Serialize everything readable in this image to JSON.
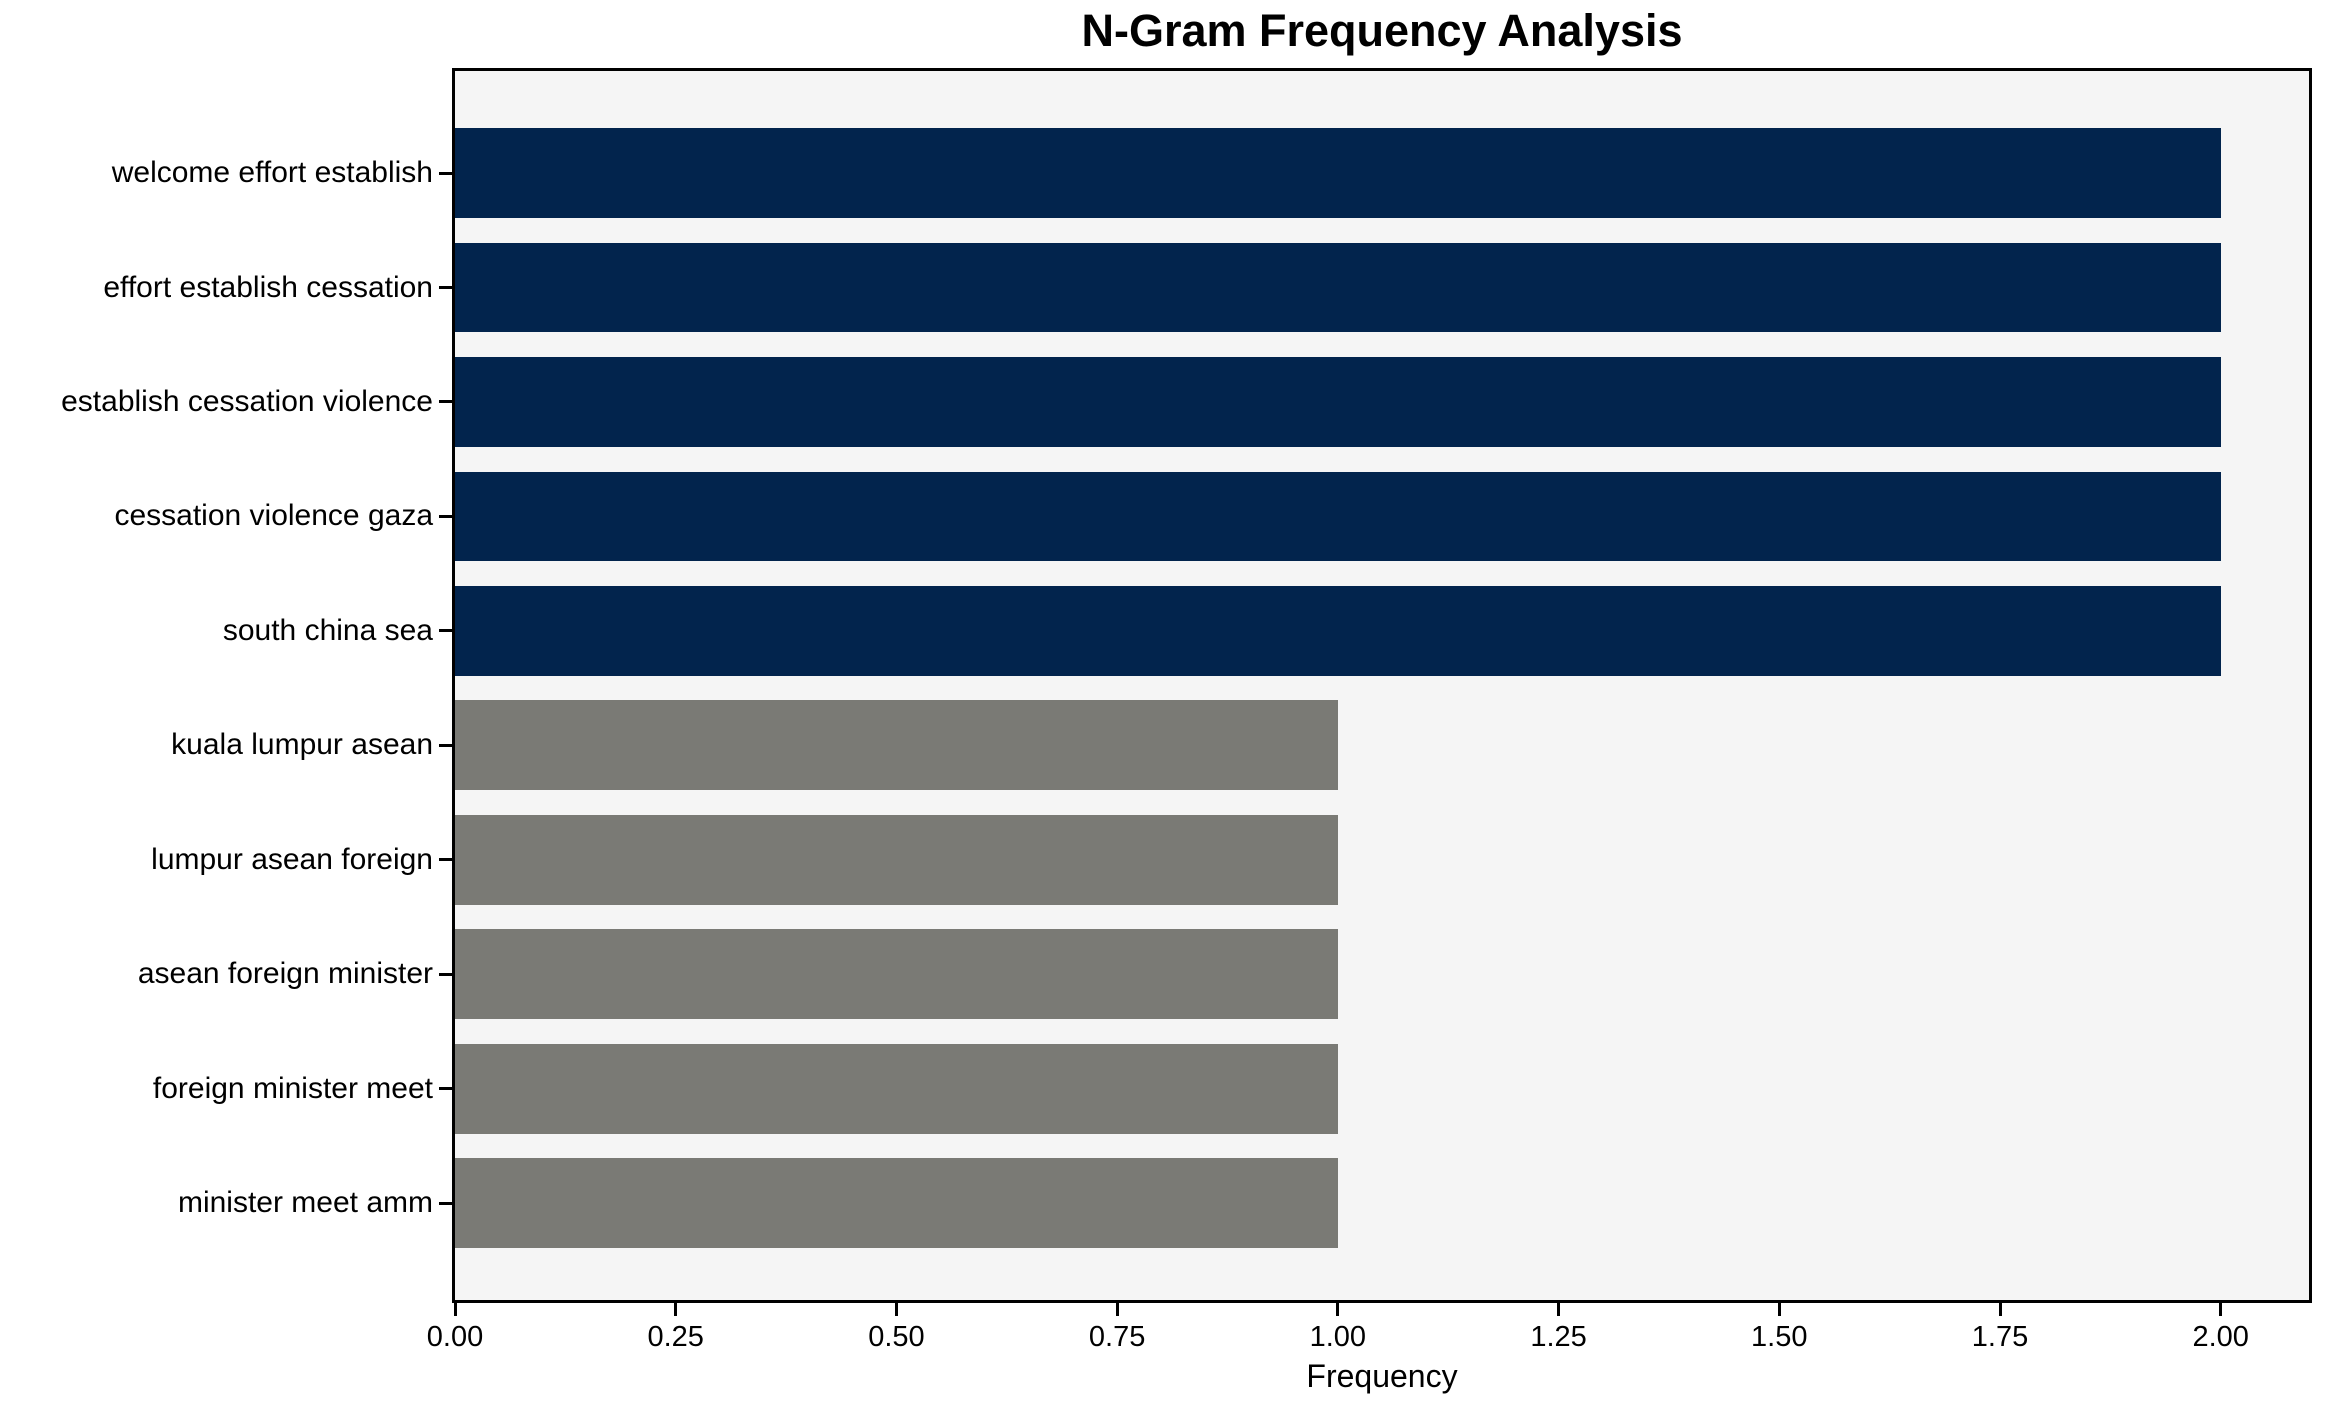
{
  "chart_data": {
    "type": "bar",
    "orientation": "horizontal",
    "title": "N-Gram Frequency Analysis",
    "xlabel": "Frequency",
    "ylabel": "",
    "categories": [
      "welcome effort establish",
      "effort establish cessation",
      "establish cessation violence",
      "cessation violence gaza",
      "south china sea",
      "kuala lumpur asean",
      "lumpur asean foreign",
      "asean foreign minister",
      "foreign minister meet",
      "minister meet amm"
    ],
    "values": [
      2,
      2,
      2,
      2,
      2,
      1,
      1,
      1,
      1,
      1
    ],
    "bar_colors": [
      "#02244d",
      "#02244d",
      "#02244d",
      "#02244d",
      "#02244d",
      "#7a7a75",
      "#7a7a75",
      "#7a7a75",
      "#7a7a75",
      "#7a7a75"
    ],
    "xlim": [
      0,
      2.1
    ],
    "x_ticks": [
      0,
      0.25,
      0.5,
      0.75,
      1.0,
      1.25,
      1.5,
      1.75,
      2.0
    ],
    "x_tick_labels": [
      "0.00",
      "0.25",
      "0.50",
      "0.75",
      "1.00",
      "1.25",
      "1.50",
      "1.75",
      "2.00"
    ],
    "grid": false,
    "legend": null,
    "plot_background": "#f5f5f5",
    "figure_background": "#ffffff",
    "spine_color": "#000000"
  }
}
